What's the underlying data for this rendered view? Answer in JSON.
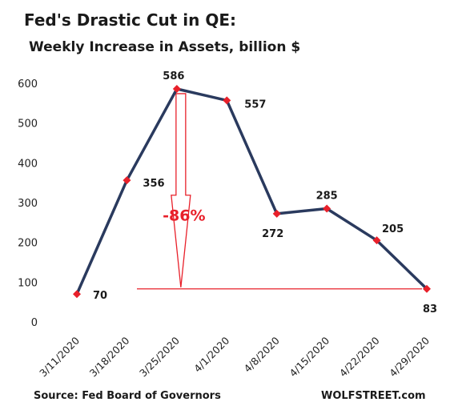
{
  "chart_data": {
    "type": "line",
    "title": "Fed's Drastic Cut in QE:",
    "subtitle": "Weekly Increase in Assets, billion $",
    "x": [
      "3/11/2020",
      "3/18/2020",
      "3/25/2020",
      "4/1/2020",
      "4/8/2020",
      "4/15/2020",
      "4/22/2020",
      "4/29/2020"
    ],
    "series": [
      {
        "values": [
          70,
          356,
          586,
          557,
          272,
          285,
          205,
          83
        ]
      }
    ],
    "data_labels": [
      "70",
      "356",
      "586",
      "557",
      "272",
      "285",
      "205",
      "83"
    ],
    "y_ticks": [
      "0",
      "100",
      "200",
      "300",
      "400",
      "500",
      "600"
    ],
    "ylim": [
      0,
      600
    ],
    "grid": false,
    "legend": "none",
    "annotation": {
      "text": "-86%",
      "from_value": 586,
      "to_value": 83
    },
    "colors": {
      "line": "#2a3a5e",
      "marker": "#e8202a",
      "annotation": "#e8202a"
    }
  },
  "footer": {
    "source": "Source: Fed Board of Governors",
    "brand": "WOLFSTREET.com"
  }
}
